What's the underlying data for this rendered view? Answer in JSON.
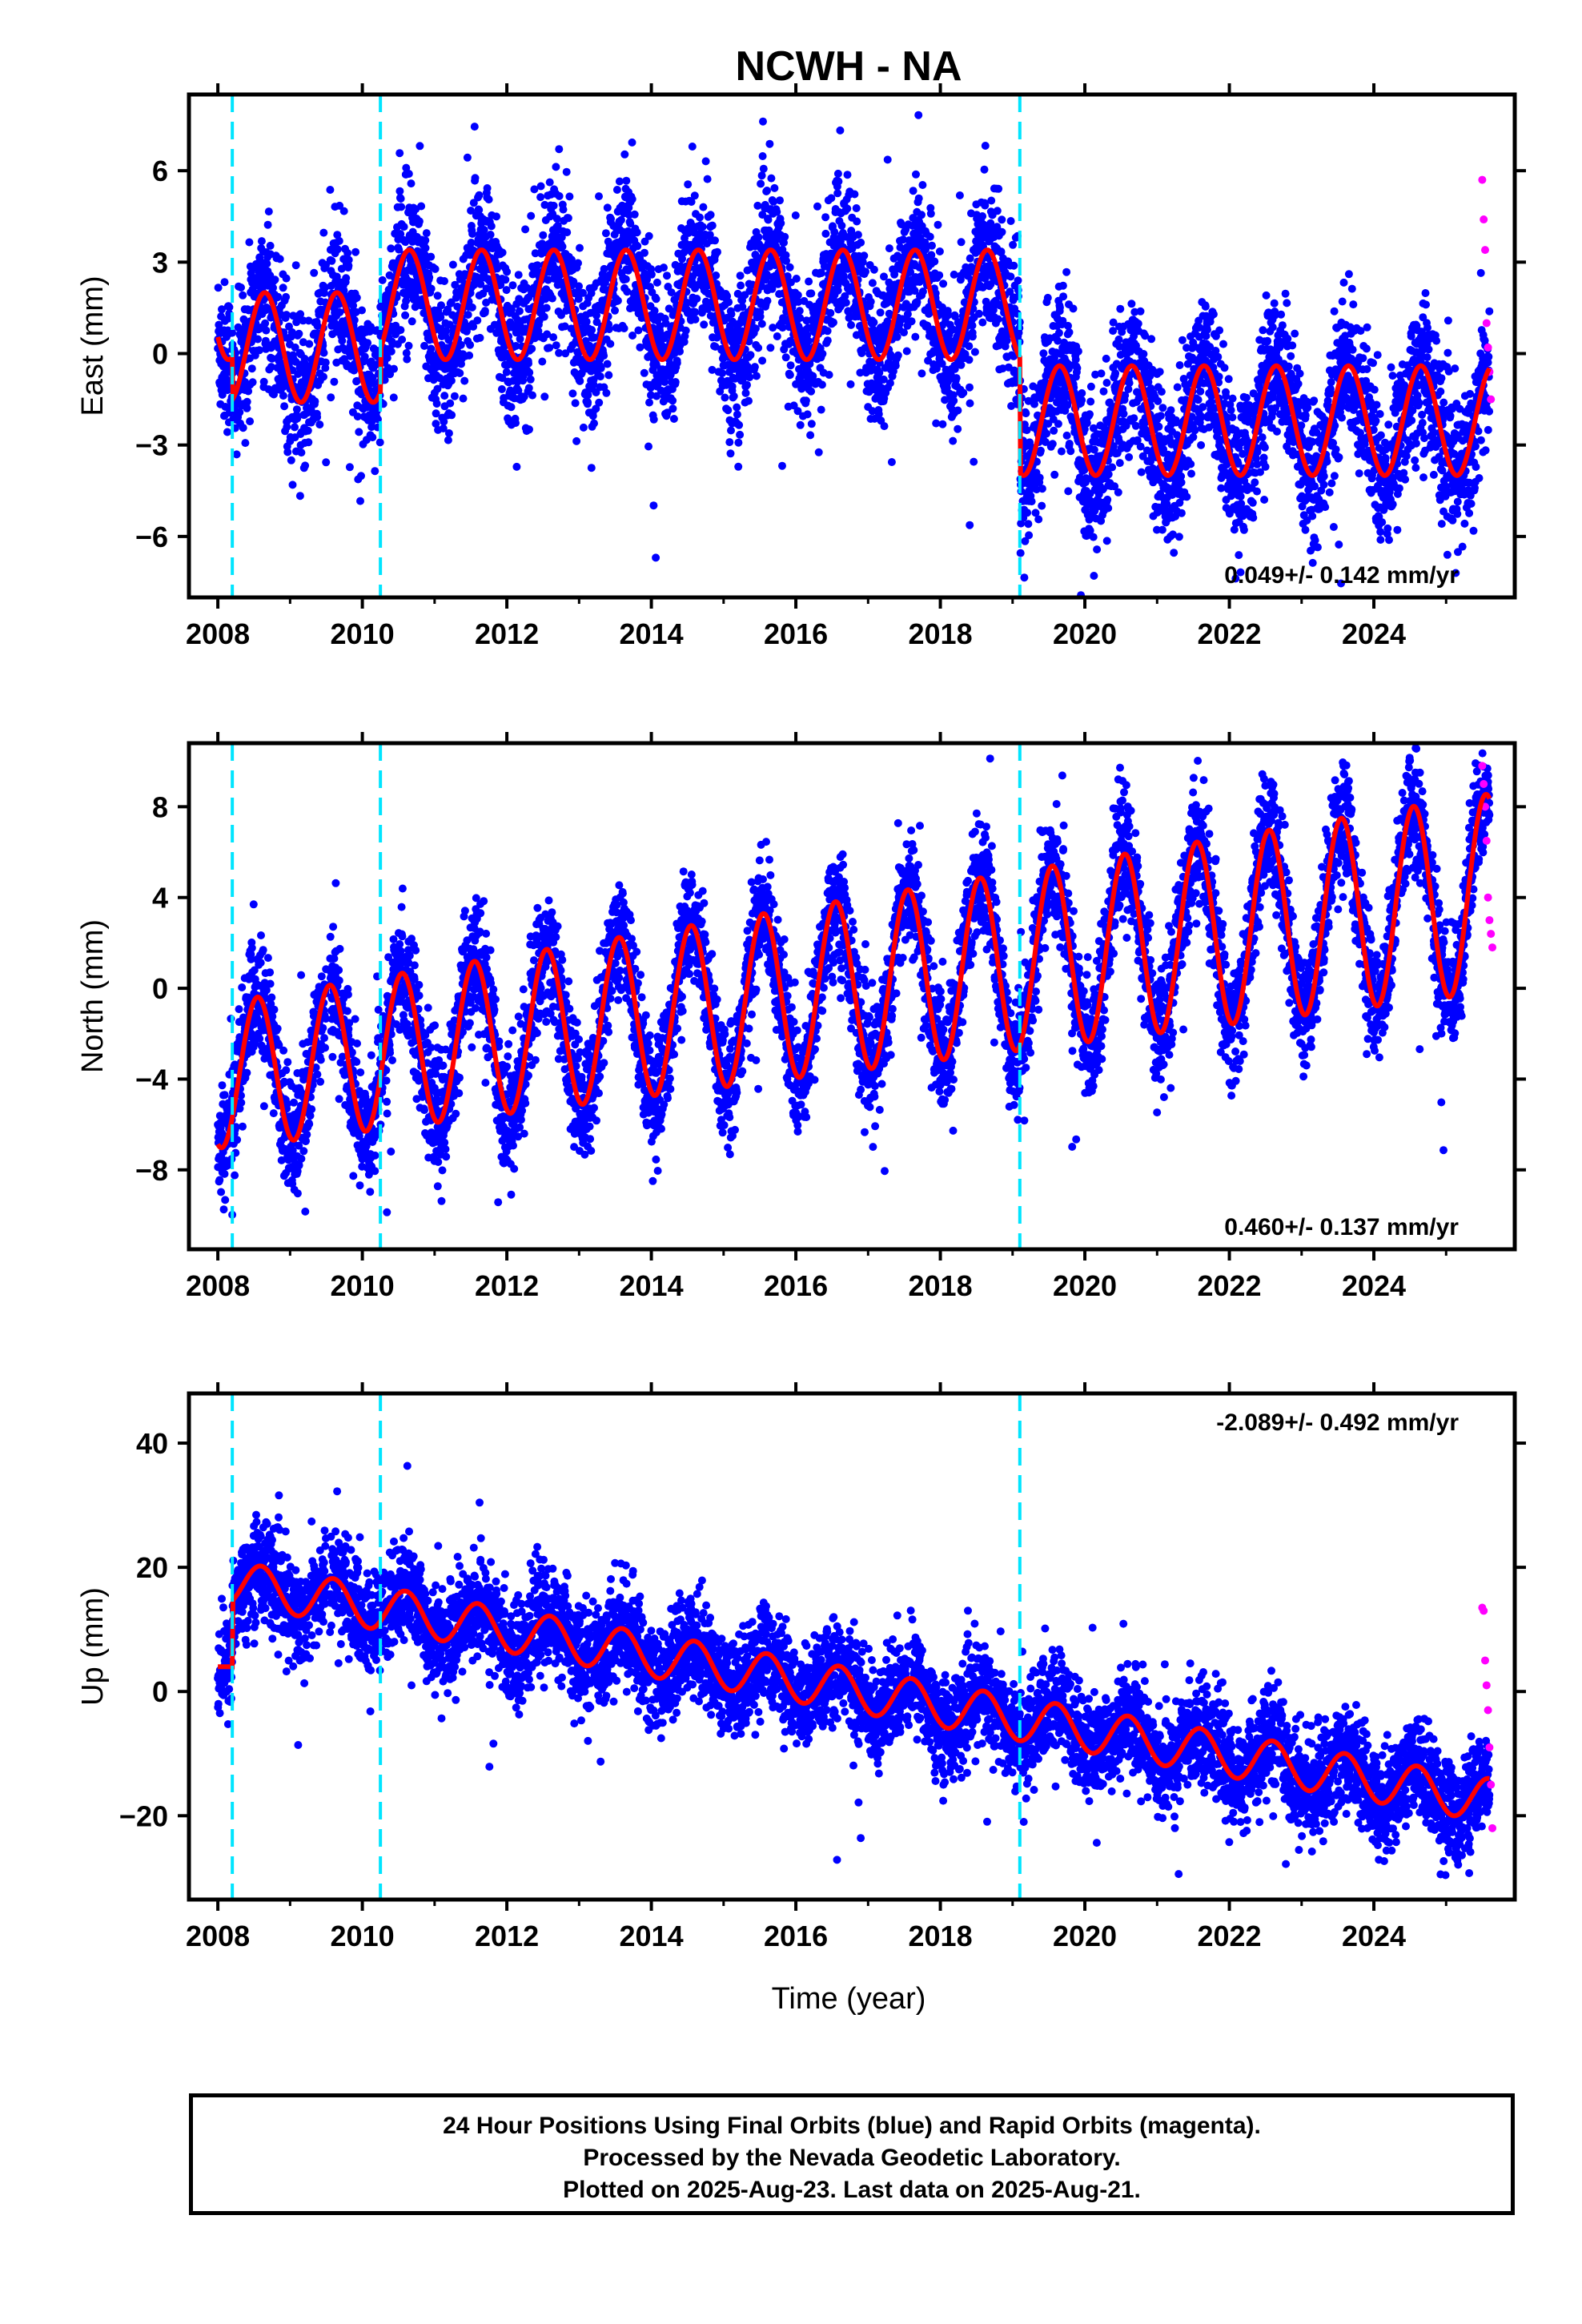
{
  "title": "NCWH - NA",
  "xlabel": "Time (year)",
  "colors": {
    "final": "#0000ff",
    "rapid": "#ff00ff",
    "model": "#ff0000",
    "offset": "#00e5ff"
  },
  "chart_data": [
    {
      "type": "scatter",
      "panel": "east",
      "ylabel": "East (mm)",
      "xlim": [
        2007.6,
        2025.95
      ],
      "ylim": [
        -8.0,
        8.5
      ],
      "xticks": [
        "2008",
        "2010",
        "2012",
        "2014",
        "2016",
        "2018",
        "2020",
        "2022",
        "2024"
      ],
      "yticks": [
        "6",
        "3",
        "0",
        "−3",
        "−6"
      ],
      "yticks_values": [
        6,
        3,
        0,
        -3,
        -6
      ],
      "offset_years": [
        2008.2,
        2010.25,
        2019.1
      ],
      "rate_text": "0.049+/- 0.142 mm/yr",
      "rate_position": "bottom-right",
      "model": {
        "segments": [
          {
            "from": 2008.0,
            "to": 2008.2,
            "level": 1.6
          },
          {
            "from": 2008.2,
            "to": 2010.25,
            "level": 0.2
          },
          {
            "from": 2010.25,
            "to": 2019.1,
            "level": 1.6
          },
          {
            "from": 2019.1,
            "to": 2025.6,
            "level": -2.2
          }
        ],
        "amplitude": 1.8,
        "phase_year": 2008.65
      },
      "series": [
        {
          "name": "Final Orbits (blue)",
          "spread": 1.2
        },
        {
          "name": "Rapid Orbits (magenta)",
          "x": [
            2025.5,
            2025.52,
            2025.54,
            2025.56,
            2025.58,
            2025.6,
            2025.62
          ],
          "y": [
            5.7,
            4.4,
            3.4,
            1.0,
            0.2,
            -0.6,
            -1.5
          ]
        }
      ]
    },
    {
      "type": "scatter",
      "panel": "north",
      "ylabel": "North (mm)",
      "xlim": [
        2007.6,
        2025.95
      ],
      "ylim": [
        -11.5,
        10.8
      ],
      "xticks": [
        "2008",
        "2010",
        "2012",
        "2014",
        "2016",
        "2018",
        "2020",
        "2022",
        "2024"
      ],
      "yticks": [
        "8",
        "4",
        "0",
        "−4",
        "−8"
      ],
      "yticks_values": [
        8,
        4,
        0,
        -4,
        -8
      ],
      "offset_years": [
        2008.2,
        2010.25,
        2019.1
      ],
      "rate_text": "0.460+/- 0.137 mm/yr",
      "rate_position": "bottom-right",
      "model": {
        "trend_start": -3.8,
        "trend_end": 4.2,
        "amplitude": 3.8,
        "phase_year": 2008.55
      },
      "series": [
        {
          "name": "Final Orbits (blue)",
          "spread": 1.3
        },
        {
          "name": "Rapid Orbits (magenta)",
          "x": [
            2025.5,
            2025.52,
            2025.54,
            2025.56,
            2025.58,
            2025.6,
            2025.62,
            2025.64
          ],
          "y": [
            9.8,
            9.0,
            8.0,
            6.5,
            4.0,
            3.0,
            2.4,
            1.8
          ]
        }
      ]
    },
    {
      "type": "scatter",
      "panel": "up",
      "ylabel": "Up (mm)",
      "xlim": [
        2007.6,
        2025.95
      ],
      "ylim": [
        -33.5,
        48.0
      ],
      "xticks": [
        "2008",
        "2010",
        "2012",
        "2014",
        "2016",
        "2018",
        "2020",
        "2022",
        "2024"
      ],
      "yticks": [
        "40",
        "20",
        "0",
        "−20"
      ],
      "yticks_values": [
        40,
        20,
        0,
        -20
      ],
      "offset_years": [
        2008.2,
        2010.25,
        2019.1
      ],
      "rate_text": "-2.089+/- 0.492 mm/yr",
      "rate_position": "top-right",
      "model": {
        "trend_start": 17.5,
        "trend_end": -17.5,
        "amplitude": 3.5,
        "phase_year": 2008.6,
        "pre_offset_level": 4.0
      },
      "series": [
        {
          "name": "Final Orbits (blue)",
          "spread": 4.0
        },
        {
          "name": "Rapid Orbits (magenta)",
          "x": [
            2025.5,
            2025.52,
            2025.54,
            2025.56,
            2025.58,
            2025.6,
            2025.62,
            2025.64
          ],
          "y": [
            13.5,
            13.0,
            5.0,
            1.0,
            -3.0,
            -9.0,
            -15.0,
            -22.0
          ]
        }
      ]
    }
  ],
  "footer": {
    "line1": "24 Hour Positions Using Final Orbits (blue) and Rapid Orbits (magenta).",
    "line2": "Processed by the Nevada Geodetic Laboratory.",
    "line3": "Plotted on 2025-Aug-23. Last data on 2025-Aug-21."
  }
}
